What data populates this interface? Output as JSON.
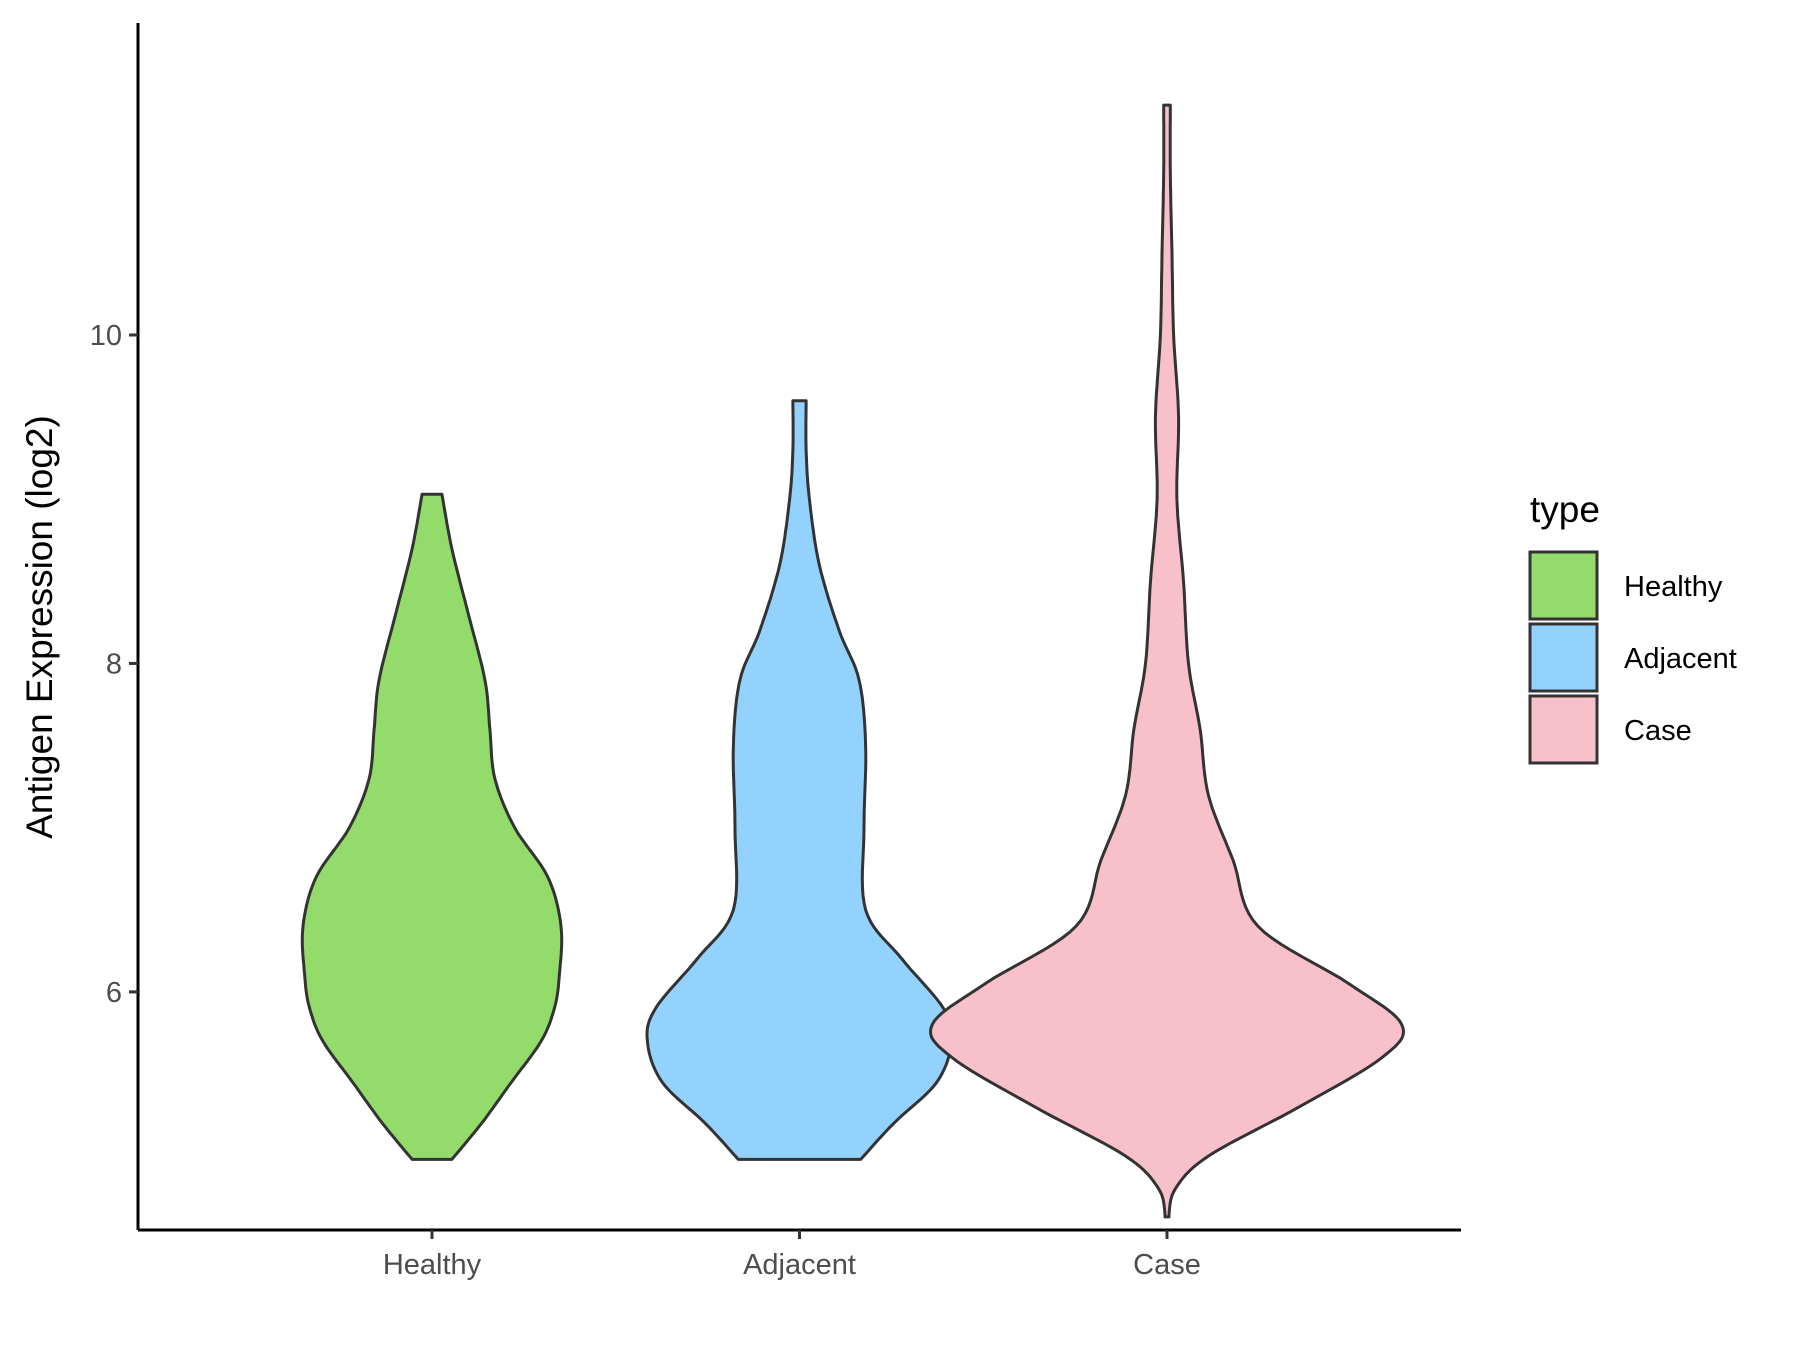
{
  "chart_data": {
    "type": "violin",
    "ylabel": "Antigen Expression (log2)",
    "xlabel": "",
    "categories": [
      "Healthy",
      "Adjacent",
      "Case"
    ],
    "ylim": [
      4.55,
      11.9
    ],
    "yticks": [
      6,
      8,
      10
    ],
    "grid": false,
    "legend": {
      "title": "type",
      "position": "right",
      "entries": [
        {
          "label": "Healthy",
          "color": "#93DB6B"
        },
        {
          "label": "Adjacent",
          "color": "#94D2FE"
        },
        {
          "label": "Case",
          "color": "#F7C0CB"
        }
      ]
    },
    "series": [
      {
        "category": "Healthy",
        "color": "#93DB6B",
        "y_min": 4.98,
        "y_max": 9.03,
        "density_profile": [
          [
            4.98,
            0.12
          ],
          [
            5.2,
            0.3
          ],
          [
            5.45,
            0.48
          ],
          [
            5.7,
            0.66
          ],
          [
            5.9,
            0.74
          ],
          [
            6.1,
            0.77
          ],
          [
            6.4,
            0.78
          ],
          [
            6.7,
            0.7
          ],
          [
            7.0,
            0.5
          ],
          [
            7.3,
            0.38
          ],
          [
            7.6,
            0.35
          ],
          [
            7.9,
            0.32
          ],
          [
            8.3,
            0.22
          ],
          [
            8.7,
            0.12
          ],
          [
            9.03,
            0.06
          ]
        ]
      },
      {
        "category": "Adjacent",
        "color": "#94D2FE",
        "y_min": 4.98,
        "y_max": 9.6,
        "density_profile": [
          [
            4.98,
            0.37
          ],
          [
            5.2,
            0.57
          ],
          [
            5.45,
            0.83
          ],
          [
            5.7,
            0.92
          ],
          [
            5.9,
            0.87
          ],
          [
            6.2,
            0.62
          ],
          [
            6.5,
            0.4
          ],
          [
            7.0,
            0.39
          ],
          [
            7.5,
            0.4
          ],
          [
            7.9,
            0.36
          ],
          [
            8.2,
            0.24
          ],
          [
            8.6,
            0.12
          ],
          [
            9.0,
            0.06
          ],
          [
            9.3,
            0.04
          ],
          [
            9.6,
            0.04
          ]
        ]
      },
      {
        "category": "Case",
        "color": "#F7C0CB",
        "y_min": 4.63,
        "y_max": 11.4,
        "density_profile": [
          [
            4.63,
            0.01
          ],
          [
            4.8,
            0.05
          ],
          [
            5.0,
            0.25
          ],
          [
            5.3,
            0.8
          ],
          [
            5.6,
            1.3
          ],
          [
            5.8,
            1.42
          ],
          [
            6.05,
            1.1
          ],
          [
            6.4,
            0.55
          ],
          [
            6.8,
            0.4
          ],
          [
            7.2,
            0.25
          ],
          [
            7.6,
            0.2
          ],
          [
            8.0,
            0.13
          ],
          [
            8.5,
            0.1
          ],
          [
            9.0,
            0.06
          ],
          [
            9.5,
            0.07
          ],
          [
            10.0,
            0.04
          ],
          [
            10.5,
            0.03
          ],
          [
            11.0,
            0.02
          ],
          [
            11.4,
            0.02
          ]
        ]
      }
    ]
  }
}
